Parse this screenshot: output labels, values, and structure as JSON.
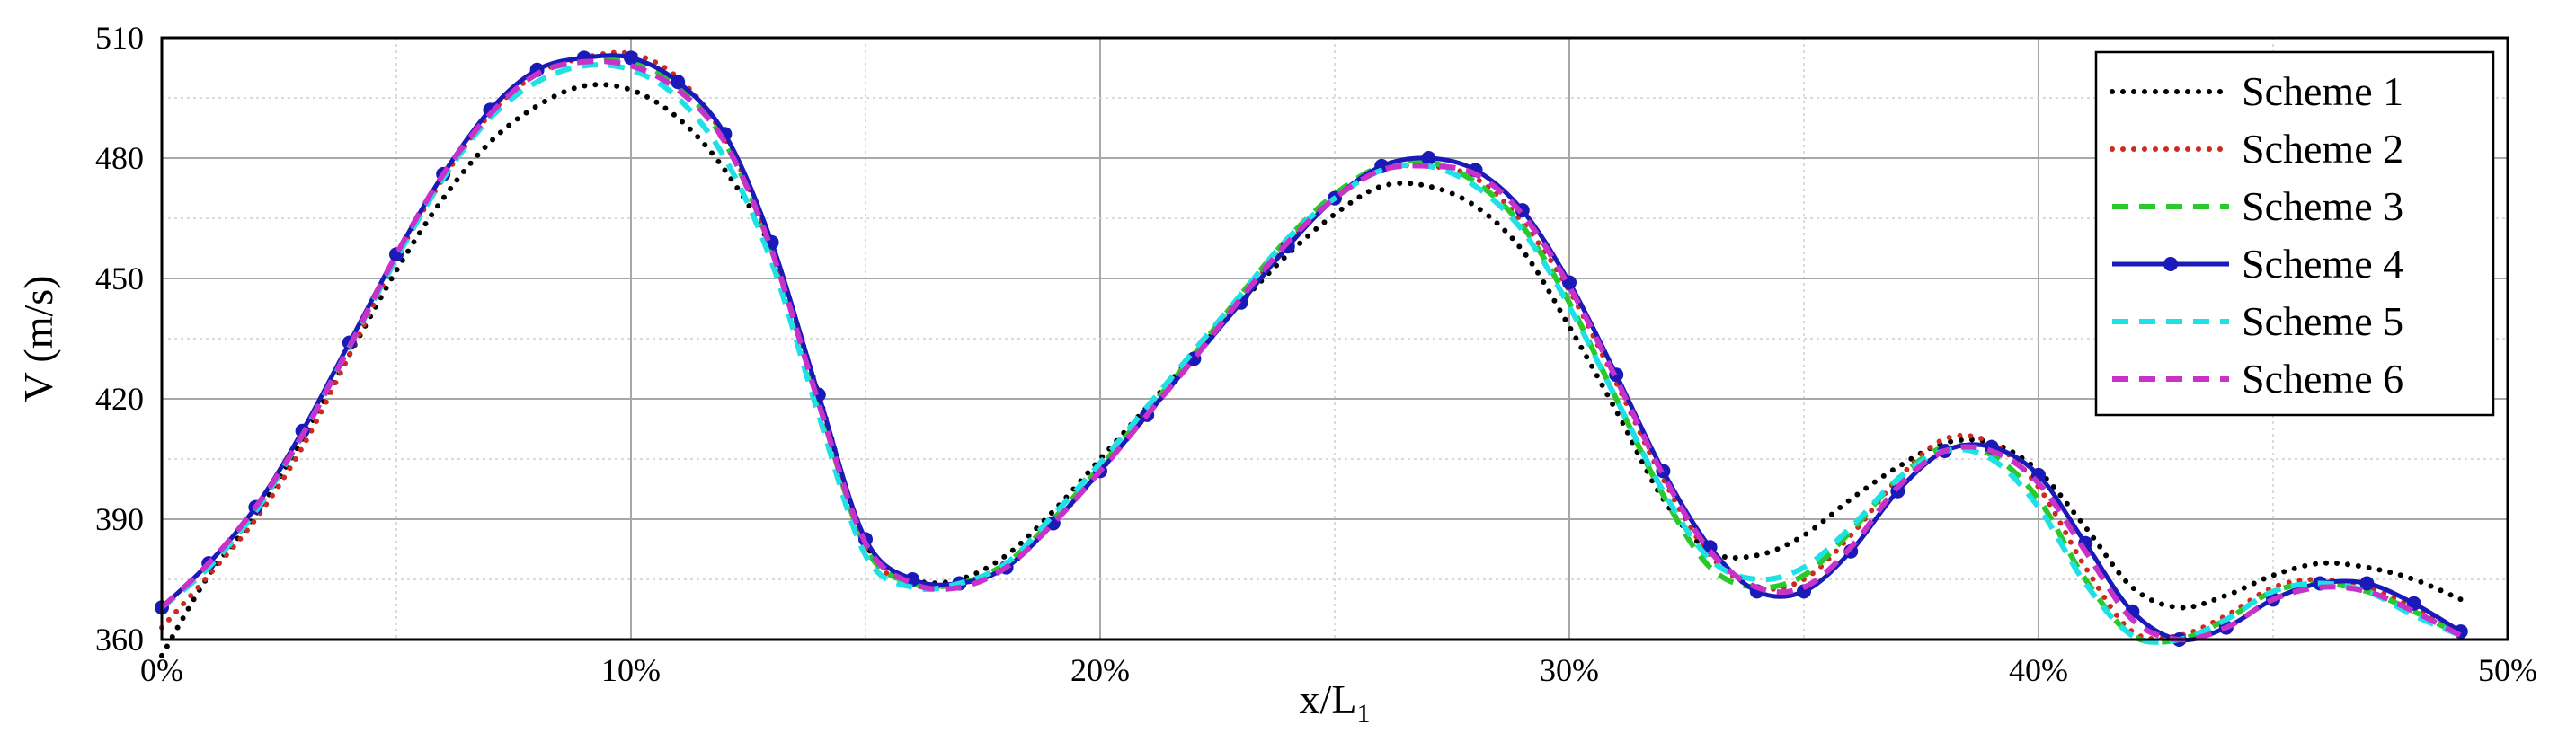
{
  "chart_data": {
    "type": "line",
    "title": "",
    "xlabel": "x/L",
    "xlabel_sub": "1",
    "ylabel": "V (m/s)",
    "xlim": [
      0,
      50
    ],
    "ylim": [
      360,
      510
    ],
    "xticks": [
      0,
      10,
      20,
      30,
      40,
      50
    ],
    "xtick_labels": [
      "0%",
      "10%",
      "20%",
      "30%",
      "40%",
      "50%"
    ],
    "yticks": [
      360,
      390,
      420,
      450,
      480,
      510
    ],
    "ytick_labels": [
      "360",
      "390",
      "420",
      "450",
      "480",
      "510"
    ],
    "grid": true,
    "legend": "top-right",
    "series": [
      {
        "name": "Scheme 1",
        "color": "#000000",
        "style": "dotted",
        "x": [
          0,
          1,
          2,
          3,
          4,
          5,
          6,
          7,
          8,
          9,
          10,
          11,
          12,
          13,
          14,
          15,
          16,
          17,
          18,
          19,
          20,
          21,
          22,
          23,
          24,
          25,
          26,
          27,
          28,
          29,
          30,
          31,
          32,
          33,
          34,
          35,
          36,
          37,
          38,
          39,
          40,
          41,
          42,
          43,
          44,
          45,
          46,
          47,
          48,
          49
        ],
        "y": [
          356,
          376,
          391,
          410,
          431,
          452,
          470,
          484,
          493,
          498,
          497,
          490,
          477,
          457,
          421,
          384,
          375,
          375,
          381,
          392,
          405,
          418,
          431,
          444,
          456,
          466,
          473,
          473,
          468,
          457,
          438,
          417,
          395,
          382,
          381,
          386,
          395,
          403,
          409,
          409,
          402,
          388,
          373,
          368,
          371,
          376,
          379,
          378,
          375,
          370
        ]
      },
      {
        "name": "Scheme 2",
        "color": "#cc2a1e",
        "style": "dotted",
        "x": [
          0,
          1,
          2,
          3,
          4,
          5,
          6,
          7,
          8,
          9,
          10,
          11,
          12,
          13,
          14,
          15,
          16,
          17,
          18,
          19,
          20,
          21,
          22,
          23,
          24,
          25,
          26,
          27,
          28,
          29,
          30,
          31,
          32,
          33,
          34,
          35,
          36,
          37,
          38,
          39,
          40,
          41,
          42,
          43,
          44,
          45,
          46,
          47,
          48,
          49
        ],
        "y": [
          363,
          376,
          390,
          408,
          431,
          455,
          475,
          491,
          501,
          505,
          506,
          500,
          485,
          458,
          420,
          383,
          374,
          374,
          378,
          389,
          402,
          416,
          430,
          445,
          459,
          470,
          477,
          478,
          475,
          464,
          447,
          424,
          400,
          381,
          373,
          375,
          386,
          400,
          410,
          409,
          398,
          378,
          362,
          361,
          366,
          373,
          375,
          373,
          368,
          362
        ]
      },
      {
        "name": "Scheme 3",
        "color": "#2bc82b",
        "style": "dashed",
        "x": [
          0,
          1,
          2,
          3,
          4,
          5,
          6,
          7,
          8,
          9,
          10,
          11,
          12,
          13,
          14,
          15,
          16,
          17,
          18,
          19,
          20,
          21,
          22,
          23,
          24,
          25,
          26,
          27,
          28,
          29,
          30,
          31,
          32,
          33,
          34,
          35,
          36,
          37,
          38,
          39,
          40,
          41,
          42,
          43,
          44,
          45,
          46,
          47,
          48,
          49
        ],
        "y": [
          368,
          378,
          392,
          411,
          433,
          455,
          475,
          491,
          501,
          504,
          504,
          498,
          484,
          457,
          419,
          383,
          374,
          374,
          379,
          390,
          403,
          417,
          431,
          446,
          460,
          471,
          478,
          479,
          474,
          463,
          444,
          420,
          396,
          378,
          373,
          376,
          387,
          400,
          408,
          406,
          395,
          375,
          361,
          360,
          365,
          372,
          374,
          372,
          367,
          361
        ]
      },
      {
        "name": "Scheme 4",
        "color": "#1a1ab8",
        "style": "solid-marker",
        "x": [
          0,
          1,
          2,
          3,
          4,
          5,
          6,
          7,
          8,
          9,
          10,
          11,
          12,
          13,
          14,
          15,
          16,
          17,
          18,
          19,
          20,
          21,
          22,
          23,
          24,
          25,
          26,
          27,
          28,
          29,
          30,
          31,
          32,
          33,
          34,
          35,
          36,
          37,
          38,
          39,
          40,
          41,
          42,
          43,
          44,
          45,
          46,
          47,
          48,
          49
        ],
        "y": [
          368,
          379,
          393,
          412,
          434,
          456,
          476,
          492,
          502,
          505,
          505,
          499,
          486,
          459,
          421,
          385,
          375,
          374,
          378,
          389,
          402,
          416,
          430,
          444,
          458,
          470,
          478,
          480,
          477,
          467,
          449,
          426,
          402,
          383,
          372,
          372,
          382,
          397,
          407,
          408,
          401,
          384,
          367,
          360,
          363,
          370,
          374,
          374,
          369,
          362
        ]
      },
      {
        "name": "Scheme 5",
        "color": "#1ee1e6",
        "style": "dashed",
        "x": [
          0,
          1,
          2,
          3,
          4,
          5,
          6,
          7,
          8,
          9,
          10,
          11,
          12,
          13,
          14,
          15,
          16,
          17,
          18,
          19,
          20,
          21,
          22,
          23,
          24,
          25,
          26,
          27,
          28,
          29,
          30,
          31,
          32,
          33,
          34,
          35,
          36,
          37,
          38,
          39,
          40,
          41,
          42,
          43,
          44,
          45,
          46,
          47,
          48,
          49
        ],
        "y": [
          368,
          378,
          392,
          411,
          433,
          455,
          475,
          490,
          499,
          503,
          502,
          495,
          480,
          454,
          416,
          381,
          373,
          374,
          379,
          391,
          404,
          418,
          432,
          446,
          460,
          470,
          477,
          478,
          473,
          462,
          443,
          420,
          397,
          380,
          375,
          378,
          388,
          400,
          407,
          405,
          393,
          374,
          361,
          360,
          365,
          372,
          374,
          372,
          366,
          361
        ]
      },
      {
        "name": "Scheme 6",
        "color": "#c832c8",
        "style": "dashed",
        "x": [
          0,
          1,
          2,
          3,
          4,
          5,
          6,
          7,
          8,
          9,
          10,
          11,
          12,
          13,
          14,
          15,
          16,
          17,
          18,
          19,
          20,
          21,
          22,
          23,
          24,
          25,
          26,
          27,
          28,
          29,
          30,
          31,
          32,
          33,
          34,
          35,
          36,
          37,
          38,
          39,
          40,
          41,
          42,
          43,
          44,
          45,
          46,
          47,
          48,
          49
        ],
        "y": [
          368,
          379,
          393,
          411,
          433,
          456,
          476,
          491,
          501,
          504,
          503,
          497,
          484,
          457,
          419,
          384,
          374,
          373,
          378,
          389,
          402,
          416,
          430,
          445,
          459,
          470,
          477,
          478,
          476,
          466,
          448,
          425,
          401,
          382,
          373,
          373,
          383,
          398,
          407,
          407,
          399,
          382,
          365,
          360,
          363,
          370,
          373,
          372,
          367,
          361
        ]
      }
    ]
  }
}
